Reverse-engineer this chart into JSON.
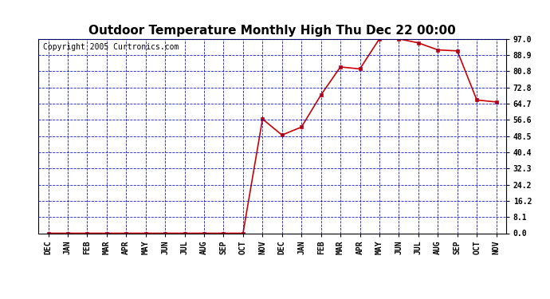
{
  "title": "Outdoor Temperature Monthly High Thu Dec 22 00:00",
  "copyright": "Copyright 2005 Curtronics.com",
  "x_labels": [
    "DEC",
    "JAN",
    "FEB",
    "MAR",
    "APR",
    "MAY",
    "JUN",
    "JUL",
    "AUG",
    "SEP",
    "OCT",
    "NOV",
    "DEC",
    "JAN",
    "FEB",
    "MAR",
    "APR",
    "MAY",
    "JUN",
    "JUL",
    "AUG",
    "SEP",
    "OCT",
    "NOV"
  ],
  "y_values": [
    0.0,
    0.0,
    0.0,
    0.0,
    0.0,
    0.0,
    0.0,
    0.0,
    0.0,
    0.0,
    0.0,
    57.0,
    49.0,
    53.0,
    69.0,
    83.0,
    82.0,
    97.0,
    97.0,
    95.0,
    91.5,
    91.0,
    66.5,
    65.5
  ],
  "yticks": [
    0.0,
    8.1,
    16.2,
    24.2,
    32.3,
    40.4,
    48.5,
    56.6,
    64.7,
    72.8,
    80.8,
    88.9,
    97.0
  ],
  "ylim": [
    0.0,
    97.0
  ],
  "line_color": "#cc0000",
  "marker_color": "#cc0000",
  "plot_bg_color": "#ffffff",
  "grid_color": "#0000cc",
  "border_color": "#000000",
  "title_fontsize": 11,
  "copyright_fontsize": 7,
  "tick_fontsize": 7
}
